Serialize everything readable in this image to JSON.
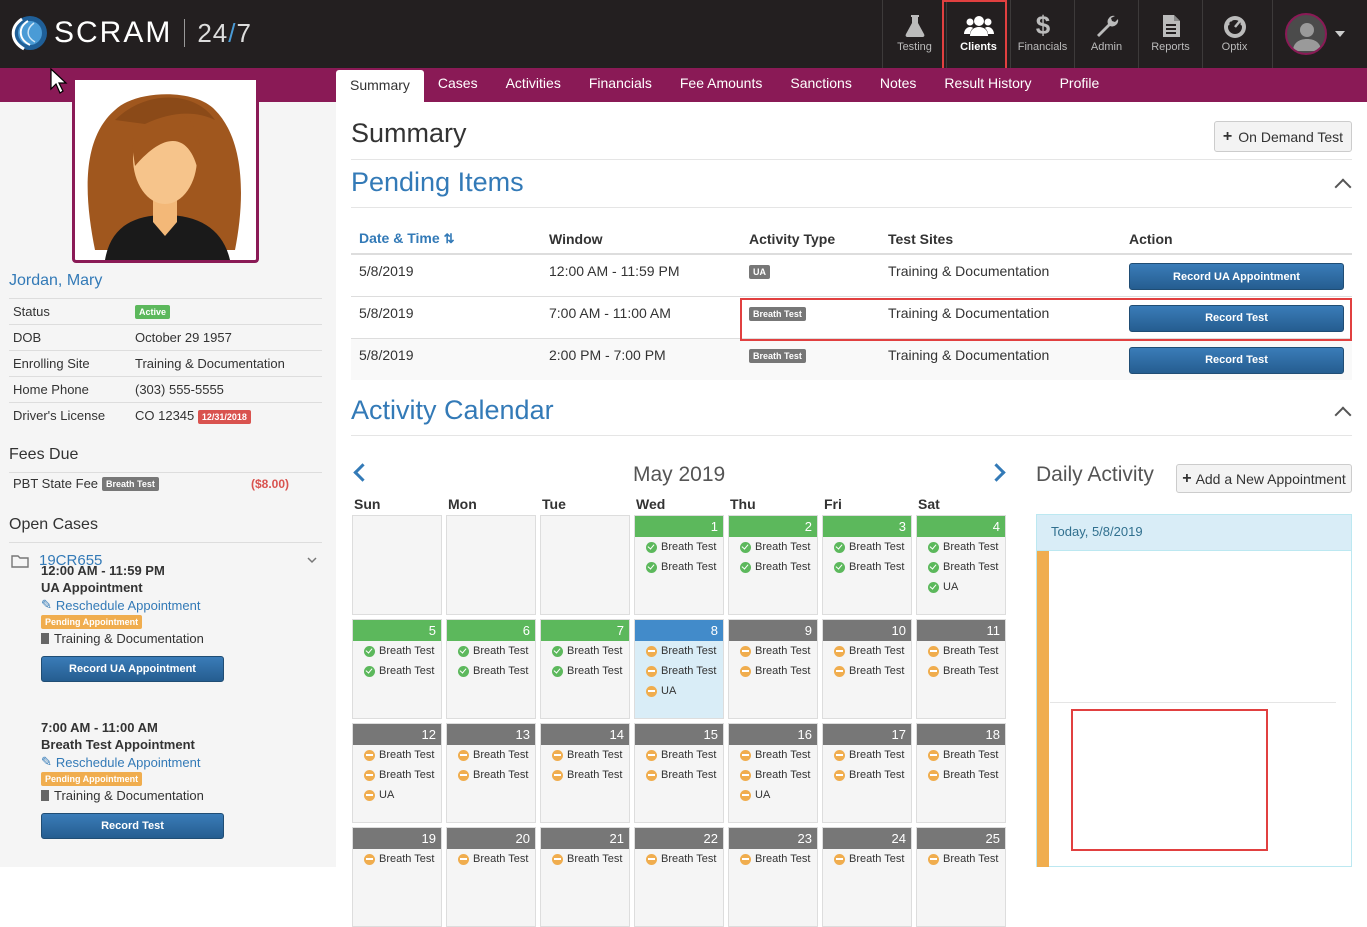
{
  "brand": {
    "name": "SCRAM",
    "suffix_a": "24",
    "suffix_slash": "/",
    "suffix_b": "7"
  },
  "nav": [
    {
      "label": "Testing",
      "icon": "flask-icon"
    },
    {
      "label": "Clients",
      "icon": "users-icon",
      "active": true
    },
    {
      "label": "Financials",
      "icon": "dollar-icon"
    },
    {
      "label": "Admin",
      "icon": "wrench-icon"
    },
    {
      "label": "Reports",
      "icon": "document-icon"
    },
    {
      "label": "Optix",
      "icon": "gauge-icon"
    }
  ],
  "tabs": [
    "Summary",
    "Cases",
    "Activities",
    "Financials",
    "Fee Amounts",
    "Sanctions",
    "Notes",
    "Result History",
    "Profile"
  ],
  "client": {
    "name": "Jordan, Mary",
    "status_label": "Status",
    "status_badge": "Active",
    "dob_label": "DOB",
    "dob": "October 29 1957",
    "site_label": "Enrolling Site",
    "site": "Training & Documentation",
    "phone_label": "Home Phone",
    "phone": "(303) 555-5555",
    "license_label": "Driver's License",
    "license": "CO 12345",
    "license_exp": "12/31/2018"
  },
  "fees": {
    "title": "Fees Due",
    "item": "PBT State Fee",
    "badge": "Breath Test",
    "amount": "($8.00)"
  },
  "cases": {
    "title": "Open Cases",
    "case_id": "19CR655"
  },
  "summary": {
    "title": "Summary",
    "on_demand": "On Demand Test"
  },
  "pending": {
    "title": "Pending Items",
    "headers": {
      "date": "Date & Time",
      "window": "Window",
      "type": "Activity Type",
      "sites": "Test Sites",
      "action": "Action"
    },
    "rows": [
      {
        "date": "5/8/2019",
        "window": "12:00 AM - 11:59 PM",
        "type": "UA",
        "site": "Training & Documentation",
        "action": "Record UA Appointment"
      },
      {
        "date": "5/8/2019",
        "window": "7:00 AM - 11:00 AM",
        "type": "Breath Test",
        "site": "Training & Documentation",
        "action": "Record Test"
      },
      {
        "date": "5/8/2019",
        "window": "2:00 PM - 7:00 PM",
        "type": "Breath Test",
        "site": "Training & Documentation",
        "action": "Record Test"
      }
    ]
  },
  "calendar": {
    "title": "Activity Calendar",
    "month": "May 2019",
    "days_of_week": [
      "Sun",
      "Mon",
      "Tue",
      "Wed",
      "Thu",
      "Fri",
      "Sat"
    ],
    "weeks": [
      [
        {
          "day": ""
        },
        {
          "day": ""
        },
        {
          "day": ""
        },
        {
          "day": "1",
          "style": "green",
          "events": [
            {
              "s": "ok",
              "l": "Breath Test"
            },
            {
              "s": "ok",
              "l": "Breath Test"
            }
          ]
        },
        {
          "day": "2",
          "style": "green",
          "events": [
            {
              "s": "ok",
              "l": "Breath Test"
            },
            {
              "s": "ok",
              "l": "Breath Test"
            }
          ]
        },
        {
          "day": "3",
          "style": "green",
          "events": [
            {
              "s": "ok",
              "l": "Breath Test"
            },
            {
              "s": "ok",
              "l": "Breath Test"
            }
          ]
        },
        {
          "day": "4",
          "style": "green",
          "events": [
            {
              "s": "ok",
              "l": "Breath Test"
            },
            {
              "s": "ok",
              "l": "Breath Test"
            },
            {
              "s": "ok",
              "l": "UA"
            }
          ]
        }
      ],
      [
        {
          "day": "5",
          "style": "green",
          "events": [
            {
              "s": "ok",
              "l": "Breath Test"
            },
            {
              "s": "ok",
              "l": "Breath Test"
            }
          ]
        },
        {
          "day": "6",
          "style": "green",
          "events": [
            {
              "s": "ok",
              "l": "Breath Test"
            },
            {
              "s": "ok",
              "l": "Breath Test"
            }
          ]
        },
        {
          "day": "7",
          "style": "green",
          "events": [
            {
              "s": "ok",
              "l": "Breath Test"
            },
            {
              "s": "ok",
              "l": "Breath Test"
            }
          ]
        },
        {
          "day": "8",
          "style": "blue",
          "events": [
            {
              "s": "pend",
              "l": "Breath Test"
            },
            {
              "s": "pend",
              "l": "Breath Test"
            },
            {
              "s": "pend",
              "l": "UA"
            }
          ]
        },
        {
          "day": "9",
          "style": "gray",
          "events": [
            {
              "s": "pend",
              "l": "Breath Test"
            },
            {
              "s": "pend",
              "l": "Breath Test"
            }
          ]
        },
        {
          "day": "10",
          "style": "gray",
          "events": [
            {
              "s": "pend",
              "l": "Breath Test"
            },
            {
              "s": "pend",
              "l": "Breath Test"
            }
          ]
        },
        {
          "day": "11",
          "style": "gray",
          "events": [
            {
              "s": "pend",
              "l": "Breath Test"
            },
            {
              "s": "pend",
              "l": "Breath Test"
            }
          ]
        }
      ],
      [
        {
          "day": "12",
          "style": "gray",
          "events": [
            {
              "s": "pend",
              "l": "Breath Test"
            },
            {
              "s": "pend",
              "l": "Breath Test"
            },
            {
              "s": "pend",
              "l": "UA"
            }
          ]
        },
        {
          "day": "13",
          "style": "gray",
          "events": [
            {
              "s": "pend",
              "l": "Breath Test"
            },
            {
              "s": "pend",
              "l": "Breath Test"
            }
          ]
        },
        {
          "day": "14",
          "style": "gray",
          "events": [
            {
              "s": "pend",
              "l": "Breath Test"
            },
            {
              "s": "pend",
              "l": "Breath Test"
            }
          ]
        },
        {
          "day": "15",
          "style": "gray",
          "events": [
            {
              "s": "pend",
              "l": "Breath Test"
            },
            {
              "s": "pend",
              "l": "Breath Test"
            }
          ]
        },
        {
          "day": "16",
          "style": "gray",
          "events": [
            {
              "s": "pend",
              "l": "Breath Test"
            },
            {
              "s": "pend",
              "l": "Breath Test"
            },
            {
              "s": "pend",
              "l": "UA"
            }
          ]
        },
        {
          "day": "17",
          "style": "gray",
          "events": [
            {
              "s": "pend",
              "l": "Breath Test"
            },
            {
              "s": "pend",
              "l": "Breath Test"
            }
          ]
        },
        {
          "day": "18",
          "style": "gray",
          "events": [
            {
              "s": "pend",
              "l": "Breath Test"
            },
            {
              "s": "pend",
              "l": "Breath Test"
            }
          ]
        }
      ],
      [
        {
          "day": "19",
          "style": "gray",
          "events": [
            {
              "s": "pend",
              "l": "Breath Test"
            }
          ]
        },
        {
          "day": "20",
          "style": "gray",
          "events": [
            {
              "s": "pend",
              "l": "Breath Test"
            }
          ]
        },
        {
          "day": "21",
          "style": "gray",
          "events": [
            {
              "s": "pend",
              "l": "Breath Test"
            }
          ]
        },
        {
          "day": "22",
          "style": "gray",
          "events": [
            {
              "s": "pend",
              "l": "Breath Test"
            }
          ]
        },
        {
          "day": "23",
          "style": "gray",
          "events": [
            {
              "s": "pend",
              "l": "Breath Test"
            }
          ]
        },
        {
          "day": "24",
          "style": "gray",
          "events": [
            {
              "s": "pend",
              "l": "Breath Test"
            }
          ]
        },
        {
          "day": "25",
          "style": "gray",
          "events": [
            {
              "s": "pend",
              "l": "Breath Test"
            }
          ]
        }
      ]
    ]
  },
  "daily": {
    "title": "Daily Activity",
    "add_button": "Add a New Appointment",
    "date_header": "Today, 5/8/2019",
    "appointments": [
      {
        "time": "12:00 AM - 11:59 PM",
        "title": "UA Appointment",
        "reschedule": "Reschedule Appointment",
        "badge": "Pending Appointment",
        "site": "Training & Documentation",
        "action": "Record UA Appointment"
      },
      {
        "time": "7:00 AM - 11:00 AM",
        "title": "Breath Test Appointment",
        "reschedule": "Reschedule Appointment",
        "badge": "Pending Appointment",
        "site": "Training & Documentation",
        "action": "Record Test"
      }
    ]
  },
  "colors": {
    "accent": "#8a1a56",
    "topbar": "#231f20",
    "link": "#337ab7",
    "success": "#5cb85c",
    "pending": "#f0ad4e",
    "highlight": "#e14040"
  }
}
